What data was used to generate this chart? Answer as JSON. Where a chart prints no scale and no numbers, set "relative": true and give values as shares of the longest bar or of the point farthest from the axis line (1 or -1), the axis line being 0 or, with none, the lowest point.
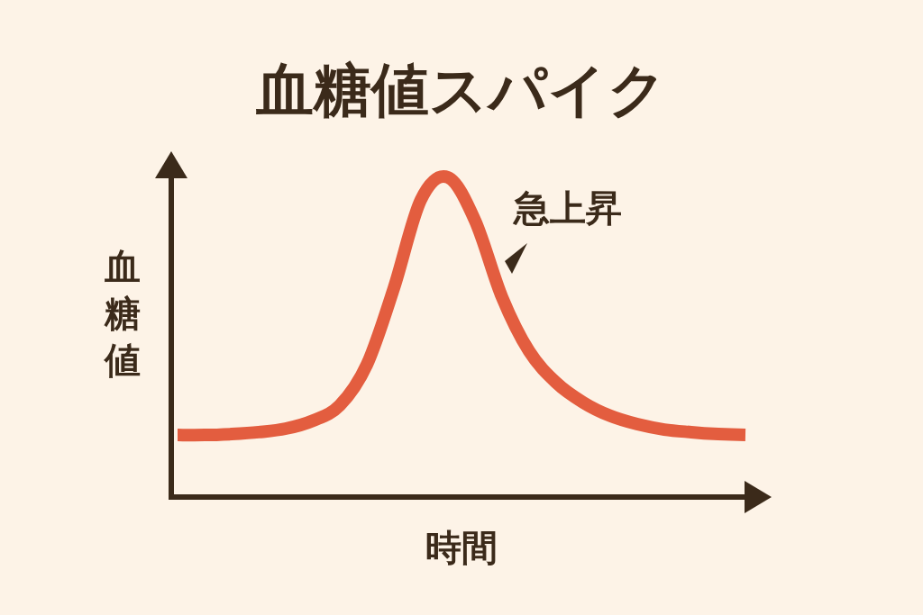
{
  "chart_data": {
    "type": "line",
    "title": "血糖値スパイク",
    "xlabel": "時間",
    "ylabel": "血糖値",
    "relative": true,
    "categories": [
      null,
      null,
      null,
      null,
      null,
      null,
      null,
      null,
      null,
      null,
      null,
      null,
      null,
      null,
      null,
      null,
      null,
      null,
      null,
      null,
      null,
      null
    ],
    "values": [
      0.194,
      0.194,
      0.197,
      0.203,
      0.214,
      0.239,
      0.287,
      0.414,
      0.654,
      0.93,
      1.0,
      0.865,
      0.625,
      0.456,
      0.358,
      0.296,
      0.254,
      0.228,
      0.211,
      0.203,
      0.197,
      0.194
    ],
    "color": "#e35d3f",
    "annotations": [
      "急上昇"
    ]
  }
}
